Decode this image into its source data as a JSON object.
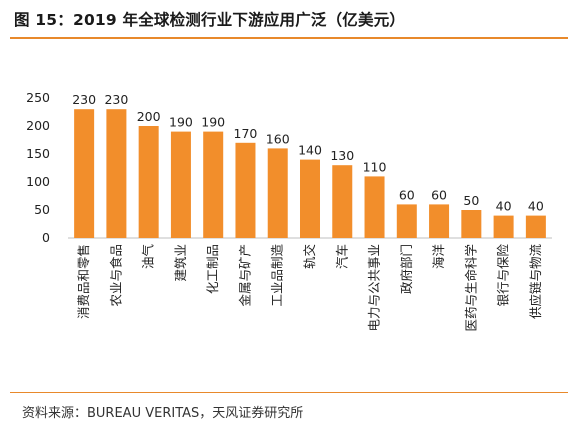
{
  "figure": {
    "title": "图 15：2019 年全球检测行业下游应用广泛（亿美元）",
    "source": "资料来源：BUREAU VERITAS，天风证券研究所"
  },
  "colors": {
    "bar": "#f28e2b",
    "accent_rule": "#e8892b",
    "axis": "#bfbfbf"
  },
  "chart_data": {
    "type": "bar",
    "title": "",
    "xlabel": "",
    "ylabel": "",
    "ylim": [
      0,
      250
    ],
    "yticks": [
      0,
      50,
      100,
      150,
      200,
      250
    ],
    "grid": false,
    "legend": "none",
    "categories": [
      "消费品和零售",
      "农业与食品",
      "油气",
      "建筑业",
      "化工制品",
      "金属与矿产",
      "工业品制造",
      "轨交",
      "汽车",
      "电力与公共事业",
      "政府部门",
      "海洋",
      "医药与生命科学",
      "银行与保险",
      "供应链与物流"
    ],
    "values": [
      230,
      230,
      200,
      190,
      190,
      170,
      160,
      140,
      130,
      110,
      60,
      60,
      50,
      40,
      40
    ]
  }
}
